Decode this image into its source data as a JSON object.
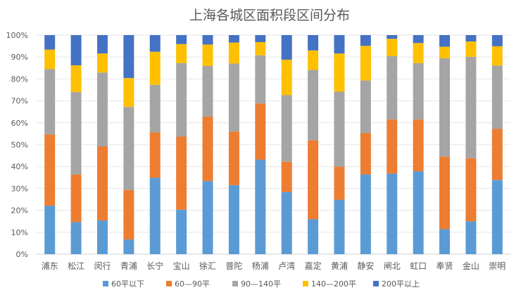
{
  "chart_data": {
    "type": "bar",
    "stacked": "percent",
    "title": "上海各城区面积段区间分布",
    "xlabel": "",
    "ylabel": "",
    "ylim": [
      0,
      100
    ],
    "yticks": [
      "0%",
      "10%",
      "20%",
      "30%",
      "40%",
      "50%",
      "60%",
      "70%",
      "80%",
      "90%",
      "100%"
    ],
    "grid": true,
    "legend": "bottom",
    "categories": [
      "浦东",
      "松江",
      "闵行",
      "青浦",
      "长宁",
      "宝山",
      "徐汇",
      "普陀",
      "杨浦",
      "卢湾",
      "嘉定",
      "黄浦",
      "静安",
      "闸北",
      "虹口",
      "奉贤",
      "金山",
      "崇明"
    ],
    "series": [
      {
        "name": "60平以下",
        "color": "#5B9BD5",
        "values": [
          22.1,
          14.6,
          15.4,
          6.7,
          34.9,
          20.3,
          33.4,
          31.5,
          43.1,
          28.4,
          15.9,
          24.8,
          36.4,
          36.8,
          37.8,
          11.4,
          15.0,
          33.9
        ]
      },
      {
        "name": "60—90平",
        "color": "#ED7D31",
        "values": [
          32.6,
          21.8,
          33.8,
          22.6,
          20.7,
          33.4,
          29.4,
          24.5,
          25.7,
          13.8,
          36.1,
          15.2,
          18.9,
          24.7,
          23.7,
          33.1,
          28.8,
          23.3
        ]
      },
      {
        "name": "90—140平",
        "color": "#A5A5A5",
        "values": [
          29.8,
          37.6,
          33.7,
          37.9,
          21.7,
          33.5,
          23.1,
          31.0,
          22.0,
          30.4,
          32.1,
          34.2,
          24.0,
          28.9,
          25.7,
          44.9,
          46.3,
          28.9
        ]
      },
      {
        "name": "140—200平",
        "color": "#FFC000",
        "values": [
          8.9,
          12.2,
          8.7,
          13.2,
          15.1,
          8.7,
          9.8,
          9.6,
          6.0,
          16.2,
          8.9,
          17.4,
          15.8,
          7.9,
          9.2,
          5.3,
          7.0,
          8.8
        ]
      },
      {
        "name": "200平以上",
        "color": "#4472C4",
        "values": [
          6.6,
          13.8,
          8.4,
          19.6,
          7.6,
          4.1,
          4.3,
          3.4,
          3.2,
          11.2,
          7.0,
          8.4,
          4.9,
          1.7,
          3.6,
          5.3,
          2.9,
          5.1
        ]
      }
    ]
  }
}
